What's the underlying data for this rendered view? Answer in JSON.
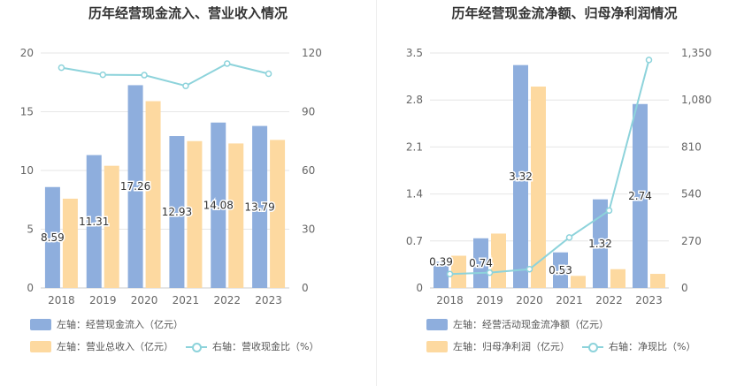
{
  "chart_data": [
    {
      "type": "bar",
      "title": "历年经营现金流入、营业收入情况",
      "categories": [
        "2018",
        "2019",
        "2020",
        "2021",
        "2022",
        "2023"
      ],
      "left_axis": {
        "range": [
          0,
          20
        ],
        "ticks": [
          "0",
          "5",
          "10",
          "15",
          "20"
        ]
      },
      "right_axis": {
        "range": [
          0,
          120
        ],
        "ticks": [
          "0",
          "30",
          "60",
          "90",
          "120"
        ]
      },
      "series": [
        {
          "name": "左轴：经营现金流入（亿元）",
          "kind": "bar",
          "axis": "left",
          "color": "#8eaedd",
          "values": [
            8.59,
            11.31,
            17.26,
            12.93,
            14.08,
            13.79
          ],
          "labels": [
            "8.59",
            "11.31",
            "17.26",
            "12.93",
            "14.08",
            "13.79"
          ]
        },
        {
          "name": "左轴：营业总收入（亿元）",
          "kind": "bar",
          "axis": "left",
          "color": "#fdd9a0",
          "values": [
            7.6,
            10.4,
            15.9,
            12.5,
            12.3,
            12.6
          ]
        },
        {
          "name": "右轴：营收现金比（%）",
          "kind": "line",
          "axis": "right",
          "color": "#8dd3db",
          "values": [
            112.5,
            108.9,
            108.7,
            103.2,
            114.6,
            109.4
          ]
        }
      ],
      "grid": true,
      "legend_position": "bottom-left"
    },
    {
      "type": "bar",
      "title": "历年经营现金流净额、归母净利润情况",
      "categories": [
        "2018",
        "2019",
        "2020",
        "2021",
        "2022",
        "2023"
      ],
      "left_axis": {
        "range": [
          0,
          3.5
        ],
        "ticks": [
          "0",
          "0.7",
          "1.4",
          "2.1",
          "2.8",
          "3.5"
        ]
      },
      "right_axis": {
        "range": [
          0,
          1350
        ],
        "ticks": [
          "0",
          "270",
          "540",
          "810",
          "1,080",
          "1,350"
        ]
      },
      "series": [
        {
          "name": "左轴：经营活动现金流净额（亿元）",
          "kind": "bar",
          "axis": "left",
          "color": "#8eaedd",
          "values": [
            0.39,
            0.74,
            3.32,
            0.53,
            1.32,
            2.74
          ],
          "labels": [
            "0.39",
            "0.74",
            "3.32",
            "0.53",
            "1.32",
            "2.74"
          ]
        },
        {
          "name": "左轴：归母净利润（亿元）",
          "kind": "bar",
          "axis": "left",
          "color": "#fdd9a0",
          "values": [
            0.48,
            0.81,
            3.0,
            0.18,
            0.28,
            0.21
          ]
        },
        {
          "name": "右轴：净现比（%）",
          "kind": "line",
          "axis": "right",
          "color": "#8dd3db",
          "values": [
            80,
            88,
            108,
            290,
            445,
            1310
          ]
        }
      ],
      "grid": true,
      "legend_position": "bottom-left"
    }
  ]
}
